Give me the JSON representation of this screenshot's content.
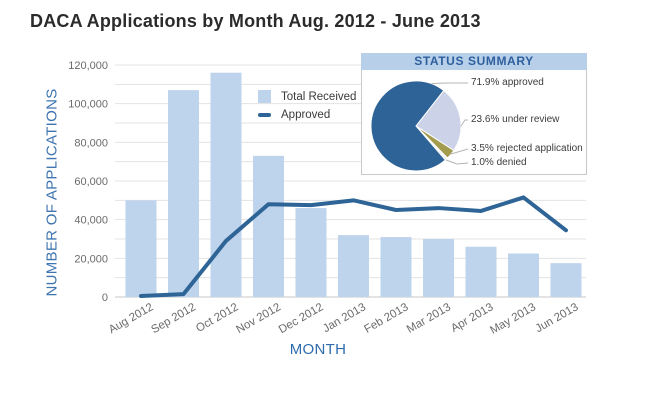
{
  "page": {
    "title": "DACA Applications by Month Aug. 2012 - June 2013"
  },
  "chart_data": [
    {
      "type": "bar+line",
      "title": "DACA Applications by Month Aug. 2012 - June 2013",
      "categories": [
        "Aug 2012",
        "Sep 2012",
        "Oct 2012",
        "Nov 2012",
        "Dec 2012",
        "Jan 2013",
        "Feb 2013",
        "Mar 2013",
        "Apr 2013",
        "May 2013",
        "Jun 2013"
      ],
      "series": [
        {
          "name": "Total Received",
          "type": "bar",
          "color": "#bed3ec",
          "values": [
            50000,
            107000,
            116000,
            73000,
            46000,
            32000,
            31000,
            30000,
            26000,
            22500,
            17500
          ]
        },
        {
          "name": "Approved",
          "type": "line",
          "color": "#2e6496",
          "values": [
            500,
            1500,
            29000,
            48000,
            47500,
            50000,
            45000,
            46000,
            44500,
            51500,
            34500
          ]
        }
      ],
      "xlabel": "MONTH",
      "ylabel": "NUMBER OF APPLICATIONS",
      "ylim": [
        0,
        120000
      ],
      "y_minor_step": 10000,
      "y_major_ticks": [
        {
          "value": 0,
          "label": "0"
        },
        {
          "value": 20000,
          "label": "20,000"
        },
        {
          "value": 40000,
          "label": "40,000"
        },
        {
          "value": 60000,
          "label": "60,000"
        },
        {
          "value": 80000,
          "label": "80,000"
        },
        {
          "value": 100000,
          "label": "100,000"
        },
        {
          "value": 120000,
          "label": "120,000"
        }
      ],
      "grid": true,
      "legend_position": "inside-top-right"
    },
    {
      "type": "pie",
      "title": "STATUS SUMMARY",
      "slices": [
        {
          "label": "approved",
          "value": 71.9,
          "display": "71.9% approved",
          "color": "#2d6397"
        },
        {
          "label": "under review",
          "value": 23.6,
          "display": "23.6% under review",
          "color": "#ccd3e8"
        },
        {
          "label": "rejected application",
          "value": 3.5,
          "display": "3.5% rejected application",
          "color": "#a39b4e"
        },
        {
          "label": "denied",
          "value": 1.0,
          "display": "1.0% denied",
          "color": "#f0f1f6"
        }
      ]
    }
  ],
  "colors": {
    "bar": "#bed3ec",
    "line": "#2e6496",
    "gridline": "#e3e3e3",
    "axis_baseline": "#c7c7c7",
    "tick_text": "#6b6b6b",
    "axis_title": "#2e6cae",
    "inset_header_bg": "#b8cfe9",
    "inset_header_text": "#2d5f9e"
  }
}
